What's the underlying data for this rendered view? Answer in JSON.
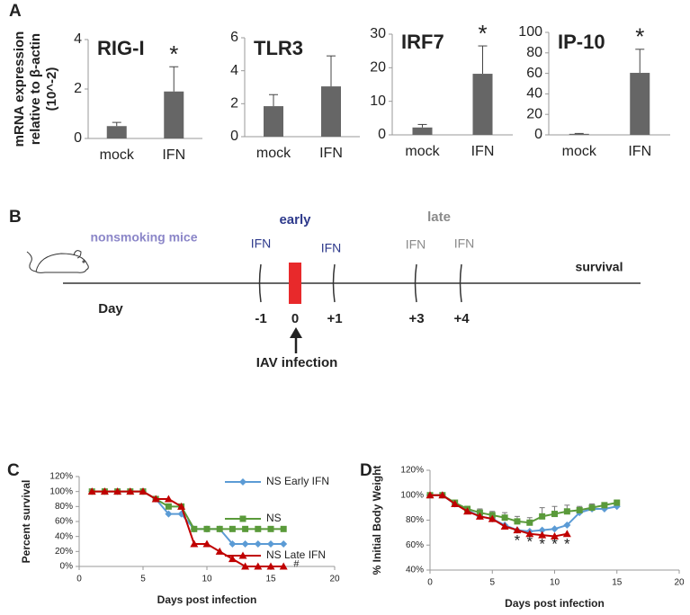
{
  "panel_labels": [
    "A",
    "B",
    "C",
    "D"
  ],
  "chart_data": [
    {
      "type": "bar",
      "title": "RIG-I",
      "ylabel": [
        "mRNA expression",
        "relative to β-actin",
        "(10^-2)"
      ],
      "categories": [
        "mock",
        "IFN"
      ],
      "values": [
        0.5,
        1.9
      ],
      "errors": [
        0.15,
        1.0
      ],
      "significance": [
        null,
        "*"
      ],
      "color": "#666666",
      "ylim": [
        0,
        4
      ],
      "yticks": [
        0,
        2,
        4
      ]
    },
    {
      "type": "bar",
      "title": "TLR3",
      "categories": [
        "mock",
        "IFN"
      ],
      "values": [
        1.85,
        3.05
      ],
      "errors": [
        0.7,
        1.85
      ],
      "color": "#666666",
      "ylim": [
        0,
        6
      ],
      "yticks": [
        0,
        2,
        4,
        6
      ]
    },
    {
      "type": "bar",
      "title": "IRF7",
      "categories": [
        "mock",
        "IFN"
      ],
      "values": [
        2.2,
        18.2
      ],
      "errors": [
        0.9,
        8.3
      ],
      "significance": [
        null,
        "*"
      ],
      "color": "#666666",
      "ylim": [
        0,
        30
      ],
      "yticks": [
        0,
        10,
        20,
        30
      ]
    },
    {
      "type": "bar",
      "title": "IP-10",
      "categories": [
        "mock",
        "IFN"
      ],
      "values": [
        1,
        60.5
      ],
      "errors": [
        0.4,
        23
      ],
      "significance": [
        null,
        "*"
      ],
      "color": "#666666",
      "ylim": [
        0,
        100
      ],
      "yticks": [
        0,
        20,
        40,
        60,
        80,
        100
      ]
    },
    {
      "type": "line",
      "xlabel": "Days post infection",
      "ylabel": "Percent survival",
      "legend": "upper right",
      "x": [
        1,
        2,
        3,
        4,
        5,
        6,
        7,
        8,
        9,
        10,
        11,
        12,
        13,
        14,
        15,
        16
      ],
      "series": [
        {
          "name": "NS Early IFN",
          "color": "#5b9bd5",
          "marker": "diamond",
          "values": [
            100,
            100,
            100,
            100,
            100,
            90,
            70,
            70,
            50,
            50,
            50,
            30,
            30,
            30,
            30,
            30
          ]
        },
        {
          "name": "NS",
          "color": "#5a9a3a",
          "marker": "square",
          "values": [
            100,
            100,
            100,
            100,
            100,
            90,
            80,
            80,
            50,
            50,
            50,
            50,
            50,
            50,
            50,
            50
          ]
        },
        {
          "name": "NS Late IFN",
          "color": "#c00000",
          "marker": "triangle",
          "values": [
            100,
            100,
            100,
            100,
            100,
            90,
            90,
            80,
            30,
            30,
            20,
            10,
            0,
            0,
            0,
            0
          ]
        }
      ],
      "annotations": [
        {
          "text": "#",
          "x": 17,
          "y": 3
        }
      ],
      "xlim": [
        0,
        20
      ],
      "xticks": [
        0,
        5,
        10,
        15,
        20
      ],
      "ylim": [
        0,
        120
      ],
      "yticks": [
        {
          "value": 0,
          "label": "0%"
        },
        {
          "value": 20,
          "label": "20%"
        },
        {
          "value": 40,
          "label": "40%"
        },
        {
          "value": 60,
          "label": "60%"
        },
        {
          "value": 80,
          "label": "80%"
        },
        {
          "value": 100,
          "label": "100%"
        },
        {
          "value": 120,
          "label": "120%"
        }
      ]
    },
    {
      "type": "line",
      "xlabel": "Days post infection",
      "ylabel": "% Initial Body Weight",
      "x": [
        0,
        1,
        2,
        3,
        4,
        5,
        6,
        7,
        8,
        9,
        10,
        11,
        12,
        13,
        14,
        15
      ],
      "series": [
        {
          "color": "#5b9bd5",
          "marker": "diamond",
          "values": [
            100,
            100,
            93,
            88,
            83,
            81,
            76,
            72,
            71,
            72,
            73,
            76,
            86,
            89,
            89,
            91
          ]
        },
        {
          "color": "#5a9a3a",
          "marker": "square",
          "values": [
            100,
            100,
            94,
            89,
            86,
            84,
            82,
            79,
            78,
            83,
            85,
            87,
            88,
            90,
            92,
            94
          ],
          "errors": [
            0,
            1,
            1,
            2,
            3,
            3,
            4,
            4,
            4,
            7,
            6,
            5,
            3,
            3,
            2,
            2
          ]
        },
        {
          "color": "#c00000",
          "marker": "triangle",
          "values": [
            100,
            100,
            93,
            87,
            83,
            81,
            75,
            72,
            69,
            68,
            67,
            69,
            null,
            null,
            null,
            null
          ]
        }
      ],
      "annotations": [
        {
          "text": "*",
          "x": 7,
          "y": 63
        },
        {
          "text": "*",
          "x": 8,
          "y": 62
        },
        {
          "text": "*",
          "x": 9,
          "y": 60
        },
        {
          "text": "*",
          "x": 10,
          "y": 60
        },
        {
          "text": "*",
          "x": 11,
          "y": 60
        }
      ],
      "xlim": [
        0,
        20
      ],
      "xticks": [
        0,
        5,
        10,
        15,
        20
      ],
      "ylim": [
        40,
        120
      ],
      "yticks": [
        {
          "value": 40,
          "label": "40%"
        },
        {
          "value": 60,
          "label": "60%"
        },
        {
          "value": 80,
          "label": "80%"
        },
        {
          "value": 100,
          "label": "100%"
        },
        {
          "value": 120,
          "label": "120%"
        }
      ]
    }
  ],
  "timeline": {
    "group": "nonsmoking mice",
    "axis_label": "Day",
    "end_label": "survival",
    "infection": "IAV infection",
    "days": [
      "-1",
      "0",
      "+1",
      "+3",
      "+4"
    ],
    "phases": [
      {
        "label": "early",
        "color": "#2e3a8c",
        "events": [
          "IFN",
          "IFN"
        ]
      },
      {
        "label": "late",
        "color": "#8a8a8a",
        "events": [
          "IFN",
          "IFN"
        ]
      }
    ]
  }
}
